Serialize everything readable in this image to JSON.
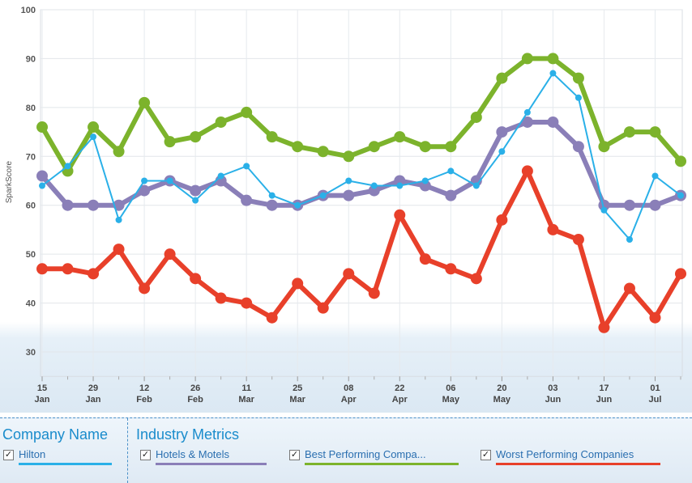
{
  "chart_data": {
    "type": "line",
    "ylabel": "SparkScore",
    "ylim": [
      25,
      100
    ],
    "yticks": [
      30,
      40,
      50,
      60,
      70,
      80,
      90,
      100
    ],
    "x_tick_labels": [
      {
        "day": "15",
        "month": "Jan"
      },
      {
        "day": "29",
        "month": "Jan"
      },
      {
        "day": "12",
        "month": "Feb"
      },
      {
        "day": "26",
        "month": "Feb"
      },
      {
        "day": "11",
        "month": "Mar"
      },
      {
        "day": "25",
        "month": "Mar"
      },
      {
        "day": "08",
        "month": "Apr"
      },
      {
        "day": "22",
        "month": "Apr"
      },
      {
        "day": "06",
        "month": "May"
      },
      {
        "day": "20",
        "month": "May"
      },
      {
        "day": "03",
        "month": "Jun"
      },
      {
        "day": "17",
        "month": "Jun"
      },
      {
        "day": "01",
        "month": "Jul"
      }
    ],
    "series": [
      {
        "name": "Best Performing Compa...",
        "color": "#7cb32c",
        "values": [
          76,
          67,
          76,
          71,
          81,
          73,
          74,
          77,
          79,
          74,
          72,
          71,
          70,
          72,
          74,
          72,
          72,
          78,
          86,
          90,
          90,
          86,
          72,
          75,
          75,
          69
        ]
      },
      {
        "name": "Hotels & Motels",
        "color": "#8a7fb8",
        "values": [
          66,
          60,
          60,
          60,
          63,
          65,
          63,
          65,
          61,
          60,
          60,
          62,
          62,
          63,
          65,
          64,
          62,
          65,
          75,
          77,
          77,
          72,
          60,
          60,
          60,
          62
        ]
      },
      {
        "name": "Hilton",
        "color": "#2ab0e8",
        "values": [
          64,
          68,
          74,
          57,
          65,
          65,
          61,
          66,
          68,
          62,
          60,
          62,
          65,
          64,
          64,
          65,
          67,
          64,
          71,
          79,
          87,
          82,
          59,
          53,
          66,
          62
        ]
      },
      {
        "name": "Worst Performing Companies",
        "color": "#e8402a",
        "values": [
          47,
          47,
          46,
          51,
          43,
          50,
          45,
          41,
          40,
          37,
          44,
          39,
          46,
          42,
          58,
          49,
          47,
          45,
          57,
          67,
          55,
          53,
          35,
          43,
          37,
          46
        ]
      }
    ]
  },
  "legend": {
    "company_title": "Company Name",
    "industry_title": "Industry Metrics",
    "checkmark": "✓",
    "items": [
      {
        "label": "Hilton",
        "color": "#2ab0e8"
      },
      {
        "label": "Hotels & Motels",
        "color": "#8a7fb8"
      },
      {
        "label": "Best Performing Compa...",
        "color": "#7cb32c"
      },
      {
        "label": "Worst Performing Companies",
        "color": "#e8402a"
      }
    ]
  }
}
